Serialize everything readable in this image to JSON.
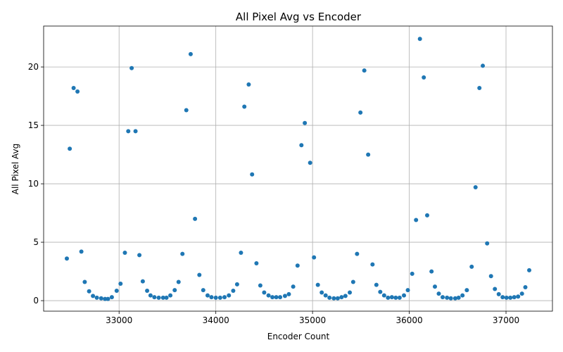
{
  "chart_data": {
    "type": "scatter",
    "title": "All Pixel Avg vs Encoder",
    "xlabel": "Encoder Count",
    "ylabel": "All Pixel Avg",
    "xlim": [
      32220,
      37480
    ],
    "ylim": [
      -0.9,
      23.5
    ],
    "xticks": [
      33000,
      34000,
      35000,
      36000,
      37000
    ],
    "yticks": [
      0,
      5,
      10,
      15,
      20
    ],
    "grid": true,
    "color": "#1f77b4",
    "points": [
      [
        32460,
        3.6
      ],
      [
        32490,
        13.0
      ],
      [
        32530,
        18.2
      ],
      [
        32570,
        17.9
      ],
      [
        32610,
        4.2
      ],
      [
        32645,
        1.6
      ],
      [
        32690,
        0.8
      ],
      [
        32730,
        0.4
      ],
      [
        32770,
        0.25
      ],
      [
        32815,
        0.2
      ],
      [
        32855,
        0.15
      ],
      [
        32885,
        0.15
      ],
      [
        32925,
        0.3
      ],
      [
        32975,
        0.85
      ],
      [
        33015,
        1.45
      ],
      [
        33060,
        4.1
      ],
      [
        33095,
        14.5
      ],
      [
        33130,
        19.9
      ],
      [
        33170,
        14.5
      ],
      [
        33210,
        3.9
      ],
      [
        33245,
        1.65
      ],
      [
        33290,
        0.85
      ],
      [
        33325,
        0.45
      ],
      [
        33365,
        0.3
      ],
      [
        33410,
        0.25
      ],
      [
        33455,
        0.25
      ],
      [
        33490,
        0.25
      ],
      [
        33530,
        0.45
      ],
      [
        33575,
        0.9
      ],
      [
        33615,
        1.6
      ],
      [
        33655,
        4.0
      ],
      [
        33695,
        16.3
      ],
      [
        33740,
        21.1
      ],
      [
        33785,
        7.0
      ],
      [
        33830,
        2.2
      ],
      [
        33870,
        0.9
      ],
      [
        33915,
        0.45
      ],
      [
        33955,
        0.3
      ],
      [
        34000,
        0.25
      ],
      [
        34045,
        0.25
      ],
      [
        34090,
        0.3
      ],
      [
        34135,
        0.45
      ],
      [
        34180,
        0.85
      ],
      [
        34220,
        1.4
      ],
      [
        34260,
        4.1
      ],
      [
        34295,
        16.6
      ],
      [
        34340,
        18.5
      ],
      [
        34375,
        10.8
      ],
      [
        34420,
        3.2
      ],
      [
        34460,
        1.3
      ],
      [
        34500,
        0.7
      ],
      [
        34545,
        0.45
      ],
      [
        34585,
        0.3
      ],
      [
        34625,
        0.3
      ],
      [
        34665,
        0.3
      ],
      [
        34715,
        0.4
      ],
      [
        34755,
        0.55
      ],
      [
        34800,
        1.2
      ],
      [
        34845,
        3.0
      ],
      [
        34885,
        13.3
      ],
      [
        34920,
        15.2
      ],
      [
        34975,
        11.8
      ],
      [
        35015,
        3.7
      ],
      [
        35055,
        1.35
      ],
      [
        35095,
        0.7
      ],
      [
        35135,
        0.45
      ],
      [
        35175,
        0.25
      ],
      [
        35220,
        0.2
      ],
      [
        35260,
        0.2
      ],
      [
        35300,
        0.3
      ],
      [
        35340,
        0.4
      ],
      [
        35385,
        0.7
      ],
      [
        35420,
        1.6
      ],
      [
        35460,
        4.0
      ],
      [
        35495,
        16.1
      ],
      [
        35535,
        19.7
      ],
      [
        35575,
        12.5
      ],
      [
        35620,
        3.1
      ],
      [
        35660,
        1.35
      ],
      [
        35700,
        0.75
      ],
      [
        35740,
        0.45
      ],
      [
        35780,
        0.25
      ],
      [
        35820,
        0.3
      ],
      [
        35860,
        0.25
      ],
      [
        35900,
        0.25
      ],
      [
        35945,
        0.45
      ],
      [
        35985,
        0.9
      ],
      [
        36030,
        2.3
      ],
      [
        36070,
        6.9
      ],
      [
        36110,
        22.4
      ],
      [
        36150,
        19.1
      ],
      [
        36185,
        7.3
      ],
      [
        36230,
        2.5
      ],
      [
        36265,
        1.2
      ],
      [
        36305,
        0.6
      ],
      [
        36345,
        0.3
      ],
      [
        36390,
        0.25
      ],
      [
        36430,
        0.2
      ],
      [
        36475,
        0.2
      ],
      [
        36510,
        0.25
      ],
      [
        36550,
        0.45
      ],
      [
        36595,
        0.9
      ],
      [
        36645,
        2.9
      ],
      [
        36685,
        9.7
      ],
      [
        36725,
        18.2
      ],
      [
        36760,
        20.1
      ],
      [
        36805,
        4.9
      ],
      [
        36845,
        2.1
      ],
      [
        36885,
        1.0
      ],
      [
        36925,
        0.55
      ],
      [
        36965,
        0.3
      ],
      [
        37005,
        0.25
      ],
      [
        37045,
        0.25
      ],
      [
        37085,
        0.3
      ],
      [
        37125,
        0.35
      ],
      [
        37165,
        0.6
      ],
      [
        37200,
        1.15
      ],
      [
        37240,
        2.6
      ]
    ]
  }
}
